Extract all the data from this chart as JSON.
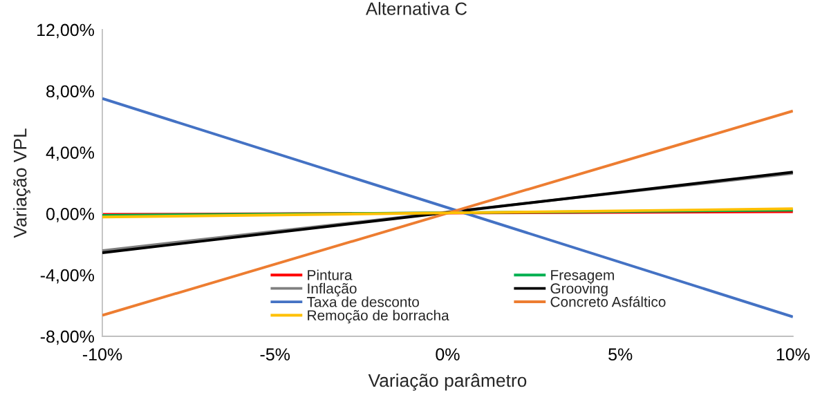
{
  "chart_data": {
    "type": "line",
    "title": "Alternativa C",
    "xlabel": "Variação parâmetro",
    "ylabel": "Variação VPL",
    "x": [
      -10,
      10
    ],
    "xlim": [
      -10,
      10
    ],
    "xticks": [
      {
        "value": -10,
        "label": "-10%"
      },
      {
        "value": -5,
        "label": "-5%"
      },
      {
        "value": 0,
        "label": "0%"
      },
      {
        "value": 5,
        "label": "5%"
      },
      {
        "value": 10,
        "label": "10%"
      }
    ],
    "ylim": [
      -8,
      12
    ],
    "yticks": [
      {
        "value": -8,
        "label": "-8,00%"
      },
      {
        "value": -4,
        "label": "-4,00%"
      },
      {
        "value": 0,
        "label": "0,00%"
      },
      {
        "value": 4,
        "label": "4,00%"
      },
      {
        "value": 8,
        "label": "8,00%"
      },
      {
        "value": 12,
        "label": "12,00%"
      }
    ],
    "legend": "bottom",
    "marker": "none",
    "line_style": "solid",
    "series": [
      {
        "name": "Pintura",
        "color": "#ff0000",
        "values": [
          -0.05,
          0.13
        ]
      },
      {
        "name": "Fresagem",
        "color": "#00b050",
        "values": [
          -0.11,
          0.23
        ]
      },
      {
        "name": "Inflação",
        "color": "#808080",
        "values": [
          -2.41,
          2.63
        ]
      },
      {
        "name": "Grooving",
        "color": "#000000",
        "values": [
          -2.55,
          2.71
        ]
      },
      {
        "name": "Taxa de desconto",
        "color": "#4472c4",
        "values": [
          7.51,
          -6.73
        ]
      },
      {
        "name": "Concreto Asfáltico",
        "color": "#ed7d31",
        "values": [
          -6.63,
          6.7
        ]
      },
      {
        "name": "Remoção de borracha",
        "color": "#ffc000",
        "values": [
          -0.22,
          0.32
        ]
      }
    ]
  }
}
